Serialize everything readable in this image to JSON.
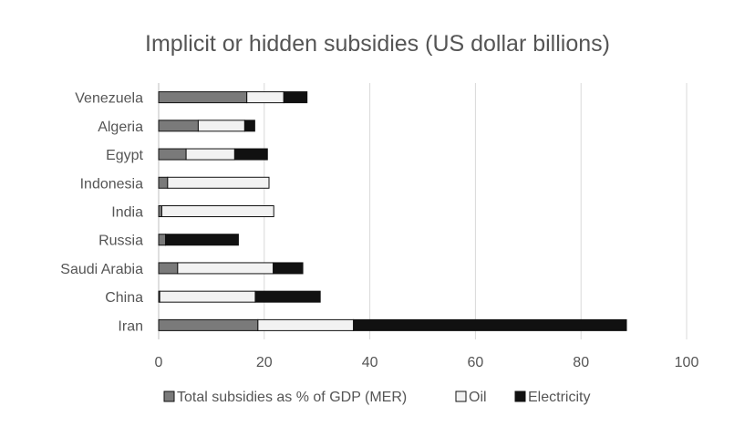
{
  "chart_data": {
    "type": "bar",
    "orientation": "horizontal",
    "stacked": true,
    "title": "Implicit or hidden subsidies (US dollar billions)",
    "xlabel": "",
    "ylabel": "",
    "xlim": [
      0,
      100
    ],
    "xticks": [
      0,
      20,
      40,
      60,
      80,
      100
    ],
    "grid": true,
    "legend_position": "bottom",
    "categories": [
      "Venezuela",
      "Algeria",
      "Egypt",
      "Indonesia",
      "India",
      "Russia",
      "Saudi Arabia",
      "China",
      "Iran"
    ],
    "series": [
      {
        "name": "Total subsidies as % of GDP (MER)",
        "color": "#7a7a7a",
        "values": [
          16.7,
          7.5,
          5.2,
          1.7,
          0.6,
          1.3,
          3.6,
          0.2,
          18.8
        ]
      },
      {
        "name": "Oil",
        "color": "#f2f2f2",
        "values": [
          7.0,
          8.8,
          9.2,
          19.2,
          21.2,
          0.0,
          18.1,
          18.1,
          18.1
        ]
      },
      {
        "name": "Electricity",
        "color": "#111111",
        "values": [
          4.4,
          1.9,
          6.2,
          0.0,
          0.0,
          13.8,
          5.6,
          12.3,
          51.7
        ]
      }
    ]
  }
}
